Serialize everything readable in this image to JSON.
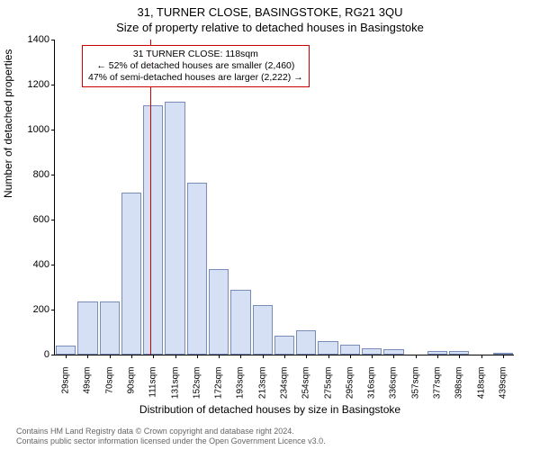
{
  "title_line1": "31, TURNER CLOSE, BASINGSTOKE, RG21 3QU",
  "title_line2": "Size of property relative to detached houses in Basingstoke",
  "yaxis_label": "Number of detached properties",
  "xaxis_label": "Distribution of detached houses by size in Basingstoke",
  "chart": {
    "type": "bar",
    "ymin": 0,
    "ymax": 1400,
    "ytick_step": 200,
    "bar_fill": "#d6e0f5",
    "bar_border": "#7a8db8",
    "vline_color": "#cc0000",
    "x_labels": [
      "29sqm",
      "49sqm",
      "70sqm",
      "90sqm",
      "111sqm",
      "131sqm",
      "152sqm",
      "172sqm",
      "193sqm",
      "213sqm",
      "234sqm",
      "254sqm",
      "275sqm",
      "295sqm",
      "316sqm",
      "336sqm",
      "357sqm",
      "377sqm",
      "398sqm",
      "418sqm",
      "439sqm"
    ],
    "values": [
      40,
      235,
      235,
      720,
      1110,
      1125,
      765,
      380,
      290,
      220,
      85,
      110,
      60,
      45,
      30,
      25,
      0,
      15,
      15,
      0,
      10
    ],
    "marker_bin_index": 4,
    "marker_fraction_in_bin": 0.35
  },
  "annotation": {
    "line1": "31 TURNER CLOSE: 118sqm",
    "line2": "← 52% of detached houses are smaller (2,460)",
    "line3": "47% of semi-detached houses are larger (2,222) →"
  },
  "footer_line1": "Contains HM Land Registry data © Crown copyright and database right 2024.",
  "footer_line2": "Contains public sector information licensed under the Open Government Licence v3.0."
}
